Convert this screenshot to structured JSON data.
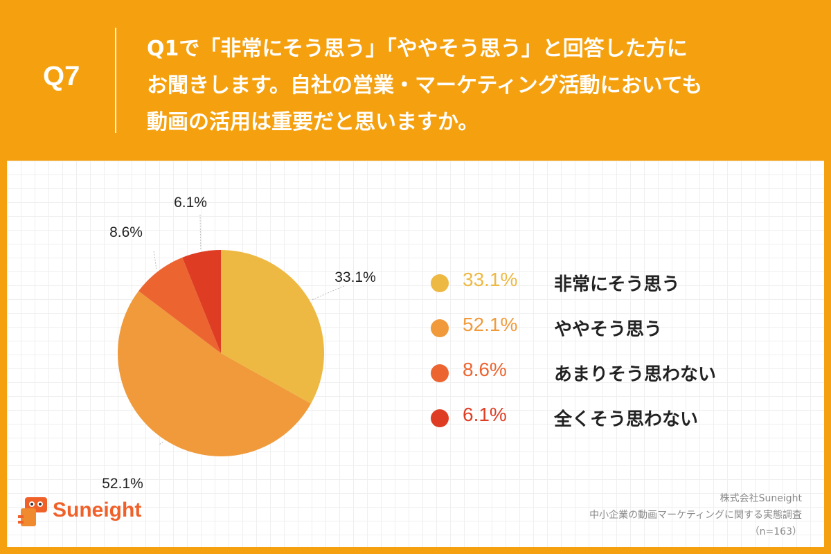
{
  "header": {
    "qnum": "Q7",
    "question_lines": [
      "Q1で「非常にそう思う」「ややそう思う」と回答した方に",
      "お聞きします。自社の営業・マーケティング活動においても",
      "動画の活用は重要だと思いますか。"
    ]
  },
  "chart_data": {
    "type": "pie",
    "slices": [
      {
        "label": "非常にそう思う",
        "value": 33.1,
        "display": "33.1%",
        "color": "#EEB943"
      },
      {
        "label": "ややそう思う",
        "value": 52.1,
        "display": "52.1%",
        "color": "#F09A3B"
      },
      {
        "label": "あまりそう思わない",
        "value": 8.6,
        "display": "8.6%",
        "color": "#EC6531"
      },
      {
        "label": "全くそう思わない",
        "value": 6.1,
        "display": "6.1%",
        "color": "#DF3D23"
      }
    ],
    "legend_placement": "right"
  },
  "footer": {
    "logo_text": "Suneight",
    "source_lines": [
      "株式会社Suneight",
      "中小企業の動画マーケティングに関する実態調査",
      "（n=163）"
    ]
  }
}
